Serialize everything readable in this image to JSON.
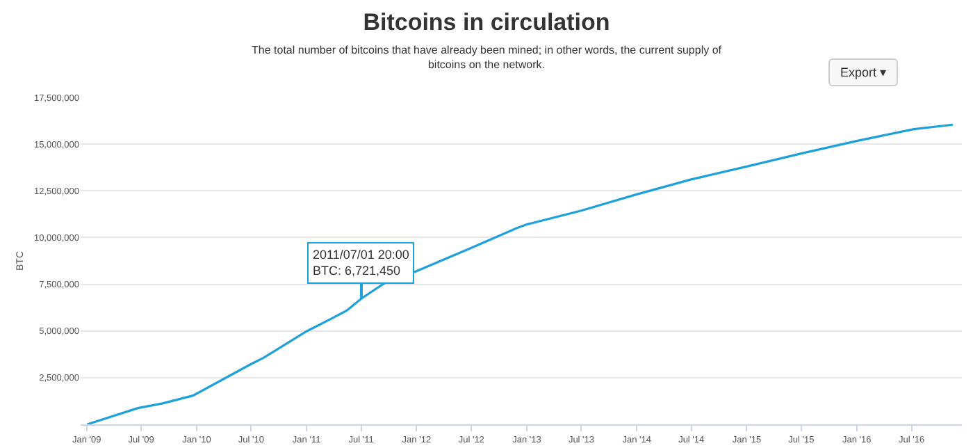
{
  "chart_data": {
    "type": "line",
    "title": "Bitcoins in circulation",
    "subtitle": "The total number of bitcoins that have already been mined; in other words, the current supply of bitcoins on the network.",
    "ylabel": "BTC",
    "x": [
      "2009-01-03",
      "2009-06-20",
      "2009-09-10",
      "2009-12-20",
      "2010-07-01",
      "2010-08-10",
      "2011-01-01",
      "2011-04-01",
      "2011-05-15",
      "2011-07-01",
      "2011-09-15",
      "2012-01-01",
      "2012-07-01",
      "2012-11-28",
      "2013-01-01",
      "2013-07-01",
      "2014-01-01",
      "2014-07-01",
      "2015-01-01",
      "2015-07-01",
      "2016-01-01",
      "2016-07-09",
      "2016-11-15"
    ],
    "series": [
      {
        "color": "#1ea0db",
        "values": [
          0,
          870000,
          1120000,
          1540000,
          3230000,
          3550000,
          4980000,
          5720000,
          6100000,
          6721450,
          7540000,
          8200000,
          9450000,
          10500000,
          10700000,
          11440000,
          12310000,
          13110000,
          13800000,
          14500000,
          15170000,
          15800000,
          16040000
        ]
      }
    ],
    "xlim": [
      "2008-12-12",
      "2016-12-15"
    ],
    "xticks": [
      {
        "value": "2009-01-01",
        "label": "Jan '09"
      },
      {
        "value": "2009-07-01",
        "label": "Jul '09"
      },
      {
        "value": "2010-01-01",
        "label": "Jan '10"
      },
      {
        "value": "2010-07-01",
        "label": "Jul '10"
      },
      {
        "value": "2011-01-01",
        "label": "Jan '11"
      },
      {
        "value": "2011-07-01",
        "label": "Jul '11"
      },
      {
        "value": "2012-01-01",
        "label": "Jan '12"
      },
      {
        "value": "2012-07-01",
        "label": "Jul '12"
      },
      {
        "value": "2013-01-01",
        "label": "Jan '13"
      },
      {
        "value": "2013-07-01",
        "label": "Jul '13"
      },
      {
        "value": "2014-01-01",
        "label": "Jan '14"
      },
      {
        "value": "2014-07-01",
        "label": "Jul '14"
      },
      {
        "value": "2015-01-01",
        "label": "Jan '15"
      },
      {
        "value": "2015-07-01",
        "label": "Jul '15"
      },
      {
        "value": "2016-01-01",
        "label": "Jan '16"
      },
      {
        "value": "2016-07-01",
        "label": "Jul '16"
      }
    ],
    "ylim": [
      0,
      17500000
    ],
    "yticks": [
      {
        "value": 0,
        "label": null
      },
      {
        "value": 2500000,
        "label": "2,500,000"
      },
      {
        "value": 5000000,
        "label": "5,000,000"
      },
      {
        "value": 7500000,
        "label": "7,500,000"
      },
      {
        "value": 10000000,
        "label": "10,000,000"
      },
      {
        "value": 12500000,
        "label": "12,500,000"
      },
      {
        "value": 15000000,
        "label": "15,000,000"
      },
      {
        "value": 17500000,
        "label": "17,500,000"
      }
    ],
    "grid": "y",
    "marker": "none",
    "line_style": "solid",
    "annotations": [
      {
        "text": "2011/07/01 20:00\nBTC: 6,721,450",
        "x": "2011-07-01T20:00",
        "y": 6721450
      },
      "Export ▾"
    ]
  }
}
